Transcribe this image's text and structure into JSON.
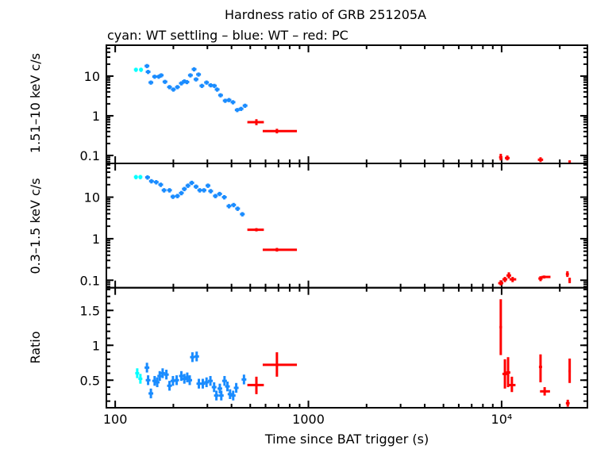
{
  "chart_data": {
    "title": "Hardness ratio of GRB 251205A",
    "subtitle": "cyan: WT settling – blue: WT – red: PC",
    "xlabel": "Time since BAT trigger (s)",
    "x_scale": "log",
    "xlim": [
      90,
      27800
    ],
    "x_ticks": [
      {
        "v": 100,
        "label": "100"
      },
      {
        "v": 1000,
        "label": "1000"
      },
      {
        "v": 10000,
        "label": "10⁴"
      }
    ],
    "colors": {
      "wt_settling": "#00ffff",
      "wt": "#1a8cff",
      "pc": "#ff0000"
    },
    "grid": false,
    "panels": [
      {
        "type": "scatter",
        "ylabel": "1.51–10 keV c/s",
        "y_scale": "log",
        "ylim": [
          0.063,
          60
        ],
        "y_ticks": [
          {
            "v": 10,
            "label": "10"
          },
          {
            "v": 1,
            "label": "1"
          },
          {
            "v": 0.1,
            "label": "0.1"
          }
        ],
        "wt_settling": [
          [
            128,
            14.5
          ],
          [
            136,
            14.5
          ]
        ],
        "wt": [
          [
            146,
            18
          ],
          [
            148,
            12.8
          ],
          [
            153,
            6.9
          ],
          [
            160,
            9.7
          ],
          [
            168,
            9.7
          ],
          [
            173,
            10.5
          ],
          [
            181,
            7.2
          ],
          [
            191,
            5.3
          ],
          [
            200,
            4.6
          ],
          [
            210,
            5.3
          ],
          [
            220,
            6.6
          ],
          [
            228,
            7.4
          ],
          [
            235,
            7.1
          ],
          [
            245,
            10.5
          ],
          [
            256,
            14.9
          ],
          [
            262,
            8.3
          ],
          [
            270,
            11
          ],
          [
            281,
            5.7
          ],
          [
            297,
            6.9
          ],
          [
            312,
            5.9
          ],
          [
            326,
            5.7
          ],
          [
            337,
            4.6
          ],
          [
            351,
            3.3
          ],
          [
            371,
            2.4
          ],
          [
            388,
            2.5
          ],
          [
            407,
            2.2
          ],
          [
            428,
            1.4
          ],
          [
            448,
            1.5
          ],
          [
            470,
            1.8
          ]
        ],
        "pc": [
          [
            538,
            0.69,
            483,
            588,
            0.58,
            0.82
          ],
          [
            687,
            0.41,
            580,
            872,
            0.36,
            0.47
          ],
          [
            9900,
            0.09,
            9700,
            10100,
            0.075,
            0.11
          ],
          [
            10700,
            0.086,
            10400,
            11000,
            0.075,
            0.1
          ],
          [
            15900,
            0.078,
            15400,
            16400,
            0.068,
            0.09
          ],
          [
            22500,
            0.07,
            22200,
            22800,
            0.063,
            0.075
          ]
        ]
      },
      {
        "type": "scatter",
        "ylabel": "0.3–1.5 keV c/s",
        "y_scale": "log",
        "ylim": [
          0.066,
          65
        ],
        "y_ticks": [
          {
            "v": 10,
            "label": "10"
          },
          {
            "v": 1,
            "label": "1"
          },
          {
            "v": 0.1,
            "label": "0.1"
          }
        ],
        "wt_settling": [
          [
            128,
            30.6
          ],
          [
            135,
            30.6
          ]
        ],
        "wt": [
          [
            147,
            30
          ],
          [
            154,
            24.3
          ],
          [
            163,
            23
          ],
          [
            172,
            20
          ],
          [
            179,
            14.7
          ],
          [
            191,
            14.7
          ],
          [
            199,
            10.3
          ],
          [
            210,
            10.7
          ],
          [
            220,
            12.6
          ],
          [
            228,
            15.8
          ],
          [
            238,
            19
          ],
          [
            249,
            22.2
          ],
          [
            262,
            18
          ],
          [
            274,
            14.7
          ],
          [
            288,
            14.7
          ],
          [
            302,
            19
          ],
          [
            312,
            14
          ],
          [
            330,
            10.7
          ],
          [
            347,
            12
          ],
          [
            367,
            10
          ],
          [
            388,
            6.1
          ],
          [
            410,
            6.5
          ],
          [
            430,
            5.3
          ],
          [
            455,
            3.9
          ]
        ],
        "pc": [
          [
            538,
            1.64,
            483,
            588,
            1.5,
            1.8
          ],
          [
            687,
            0.54,
            580,
            872,
            0.49,
            0.6
          ],
          [
            9900,
            0.085,
            9600,
            10200,
            0.075,
            0.1
          ],
          [
            10400,
            0.105,
            10100,
            10700,
            0.09,
            0.12
          ],
          [
            10900,
            0.13,
            10600,
            11200,
            0.11,
            0.155
          ],
          [
            11400,
            0.105,
            11000,
            11900,
            0.09,
            0.12
          ],
          [
            15900,
            0.11,
            15500,
            16300,
            0.095,
            0.125
          ],
          [
            16600,
            0.12,
            16100,
            17900,
            0.11,
            0.13
          ],
          [
            21900,
            0.14,
            21500,
            22300,
            0.12,
            0.165
          ],
          [
            22500,
            0.1,
            22200,
            22800,
            0.085,
            0.115
          ]
        ]
      },
      {
        "type": "scatter",
        "ylabel": "Ratio",
        "y_scale": "linear",
        "ylim": [
          0.105,
          1.825
        ],
        "y_ticks": [
          {
            "v": 1.5,
            "label": "1.5"
          },
          {
            "v": 1,
            "label": "1"
          },
          {
            "v": 0.5,
            "label": "0.5"
          }
        ],
        "wt_settling": [
          [
            130,
            0.6
          ],
          [
            135,
            0.52
          ]
        ],
        "wt": [
          [
            146,
            0.68
          ],
          [
            148,
            0.5
          ],
          [
            153,
            0.31
          ],
          [
            160,
            0.49
          ],
          [
            165,
            0.47
          ],
          [
            170,
            0.56
          ],
          [
            176,
            0.6
          ],
          [
            184,
            0.58
          ],
          [
            191,
            0.42
          ],
          [
            199,
            0.49
          ],
          [
            208,
            0.5
          ],
          [
            220,
            0.56
          ],
          [
            228,
            0.52
          ],
          [
            236,
            0.54
          ],
          [
            243,
            0.5
          ],
          [
            251,
            0.83
          ],
          [
            264,
            0.84
          ],
          [
            271,
            0.45
          ],
          [
            284,
            0.45
          ],
          [
            297,
            0.47
          ],
          [
            311,
            0.49
          ],
          [
            325,
            0.4
          ],
          [
            334,
            0.28
          ],
          [
            348,
            0.38
          ],
          [
            354,
            0.28
          ],
          [
            368,
            0.49
          ],
          [
            381,
            0.41
          ],
          [
            393,
            0.3
          ],
          [
            408,
            0.28
          ],
          [
            423,
            0.39
          ],
          [
            464,
            0.51
          ]
        ],
        "pc": [
          [
            538,
            0.43,
            483,
            588,
            0.3,
            0.55
          ],
          [
            687,
            0.72,
            580,
            872,
            0.55,
            0.9
          ],
          [
            9900,
            1.26,
            9750,
            10050,
            0.86,
            1.66
          ],
          [
            10400,
            0.59,
            10100,
            10700,
            0.38,
            0.8
          ],
          [
            10800,
            0.61,
            10550,
            11100,
            0.4,
            0.83
          ],
          [
            11300,
            0.43,
            10900,
            11800,
            0.33,
            0.55
          ],
          [
            15900,
            0.69,
            15600,
            16200,
            0.47,
            0.87
          ],
          [
            16700,
            0.34,
            15800,
            17800,
            0.28,
            0.4
          ],
          [
            22000,
            0.17,
            21500,
            22500,
            0.12,
            0.22
          ],
          [
            22500,
            0.63,
            22200,
            22800,
            0.46,
            0.81
          ]
        ]
      }
    ]
  }
}
